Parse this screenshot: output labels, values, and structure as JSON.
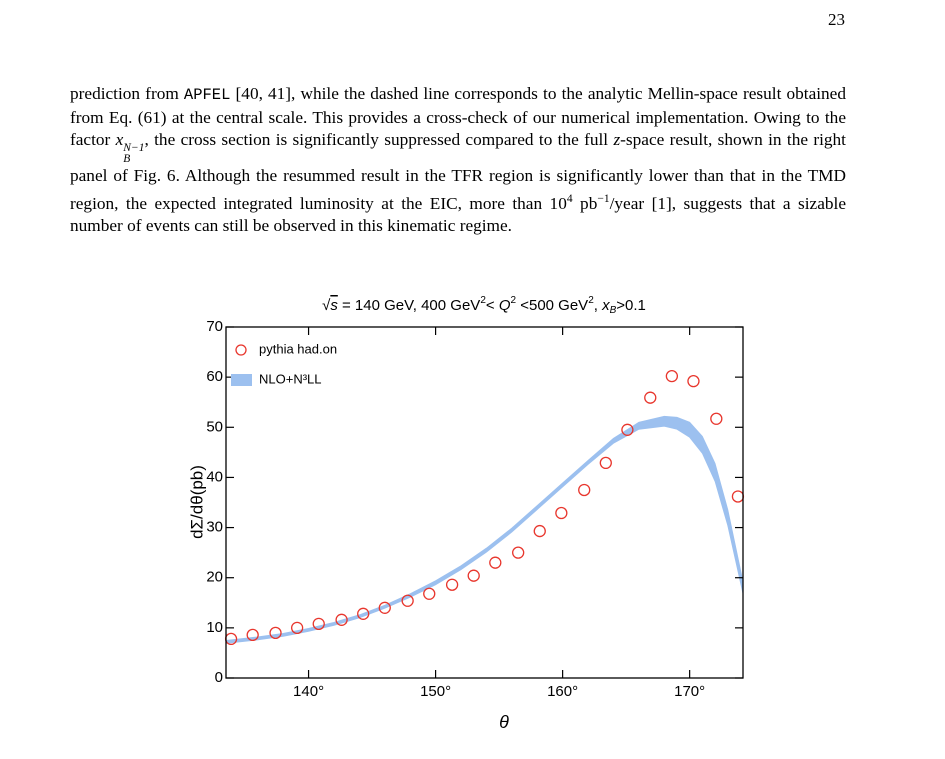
{
  "page_number": "23",
  "text": {
    "runs": [
      "prediction from ",
      "APFEL",
      " [40, 41], while the dashed line corresponds to the analytic Mellin-space result obtained from Eq. (61) at the central scale. This provides a cross-check of our numerical implementation. Owing to the factor ",
      "x",
      "N−1",
      "B",
      ", the cross section is significantly suppressed compared to the full ",
      "z",
      "-space result, shown in the right panel of Fig. 6. Although the resummed result in the TFR region is significantly lower than that in the TMD region, the expected integrated luminosity at the EIC, more than 10",
      "4",
      " pb",
      "−1",
      "/year [1], suggests that a sizable number of events can still be observed in this kinematic regime."
    ]
  },
  "chart_data": {
    "type": "scatter",
    "title": [
      "√",
      "s",
      " = 140 GeV, 400 GeV",
      "2",
      "< ",
      "Q",
      "2",
      " <500 GeV",
      "2",
      ", ",
      "x",
      "B",
      ">0.1"
    ],
    "x_label": "θ",
    "y_label": "dΣ/dθ(pb)",
    "xlim": [
      133.5,
      174.2
    ],
    "ylim": [
      0,
      70
    ],
    "xticks": [
      {
        "value": 140,
        "label": "140°"
      },
      {
        "value": 150,
        "label": "150°"
      },
      {
        "value": 160,
        "label": "160°"
      },
      {
        "value": 170,
        "label": "170°"
      }
    ],
    "yticks": [
      0,
      10,
      20,
      30,
      40,
      50,
      60,
      70
    ],
    "legend": "upper left",
    "series": [
      {
        "name": "pythia had.on",
        "type": "scatter",
        "color": "#e8362d",
        "x": [
          133.9,
          135.6,
          137.4,
          139.1,
          140.8,
          142.6,
          144.3,
          146.0,
          147.8,
          149.5,
          151.3,
          153.0,
          154.7,
          156.5,
          158.2,
          159.9,
          161.7,
          163.4,
          165.1,
          166.9,
          168.6,
          170.3,
          172.1,
          173.8
        ],
        "values": [
          7.8,
          8.6,
          9.0,
          10.0,
          10.8,
          11.6,
          12.8,
          14.0,
          15.4,
          16.8,
          18.6,
          20.4,
          23.0,
          25.0,
          29.3,
          32.9,
          37.5,
          42.9,
          49.5,
          55.9,
          60.2,
          59.2,
          51.7,
          36.2
        ]
      },
      {
        "name": "NLO+N³LL",
        "type": "band",
        "color": "#9cc0ef",
        "x": [
          133.5,
          136,
          138,
          140,
          142,
          144,
          146,
          148,
          150,
          152,
          154,
          156,
          158,
          160,
          162,
          164,
          166,
          168,
          169,
          170,
          171,
          172,
          173,
          174.2
        ],
        "lower": [
          6.9,
          7.6,
          8.3,
          9.3,
          10.5,
          12.0,
          13.9,
          16.1,
          18.6,
          21.6,
          25.1,
          29.1,
          33.6,
          38.1,
          42.6,
          46.8,
          49.6,
          50.2,
          49.6,
          48.0,
          44.8,
          39.2,
          30.4,
          16.8
        ],
        "upper": [
          7.5,
          8.2,
          8.9,
          9.9,
          11.1,
          12.6,
          14.5,
          16.8,
          19.4,
          22.4,
          25.9,
          29.9,
          34.4,
          38.9,
          43.4,
          47.8,
          51.0,
          52.2,
          52.0,
          51.0,
          48.2,
          42.8,
          33.6,
          19.2
        ]
      }
    ]
  }
}
